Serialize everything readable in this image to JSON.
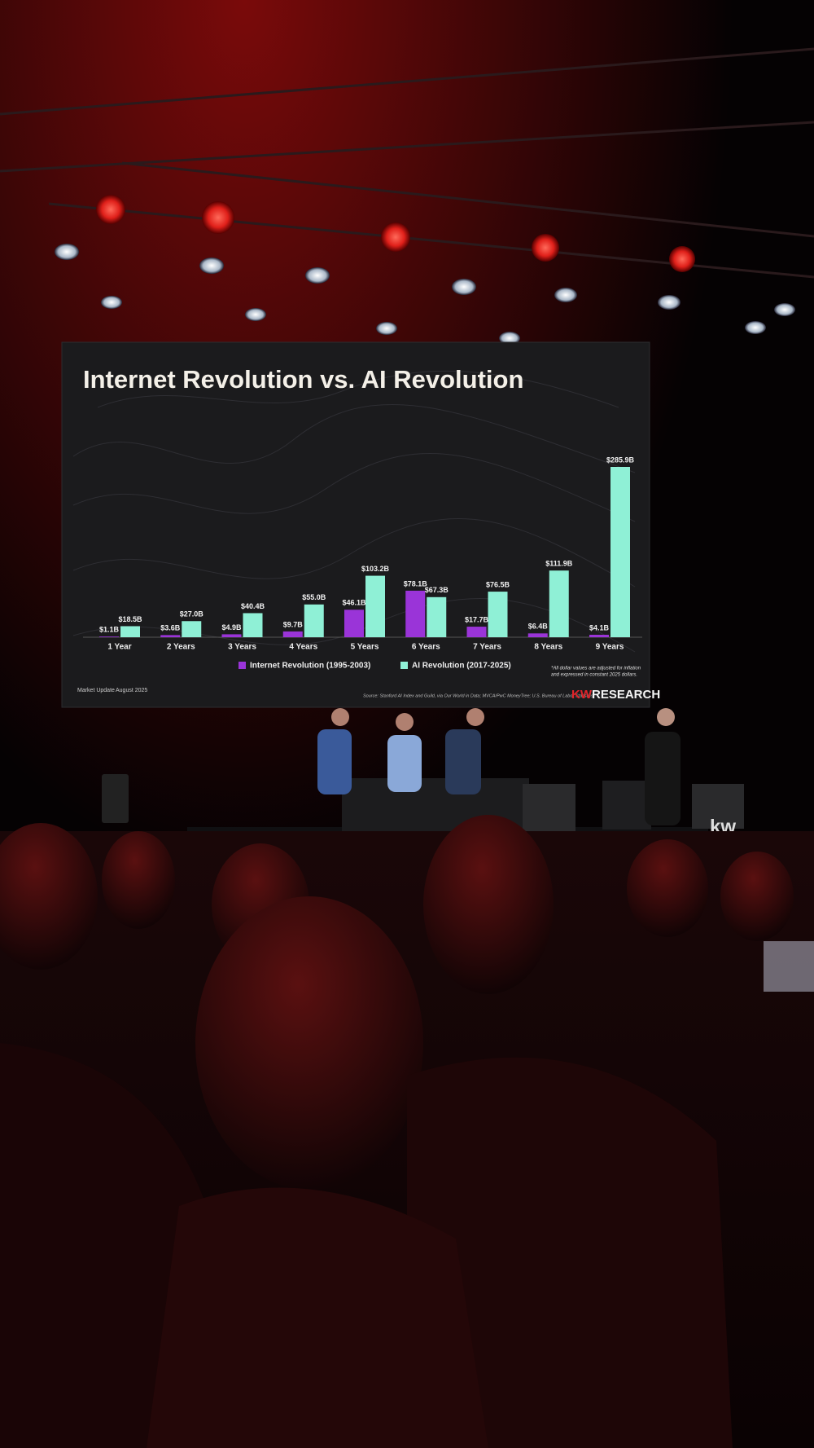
{
  "chart_data": {
    "type": "bar",
    "title": "Internet Revolution vs. AI Revolution",
    "categories": [
      "1 Year",
      "2 Years",
      "3 Years",
      "4 Years",
      "5 Years",
      "6 Years",
      "7 Years",
      "8 Years",
      "9 Years"
    ],
    "series": [
      {
        "name": "Internet Revolution (1995-2003)",
        "color": "#9a34d8",
        "values": [
          1.1,
          3.6,
          4.9,
          9.7,
          46.1,
          78.1,
          17.7,
          6.4,
          4.1
        ],
        "value_labels": [
          "$1.1B",
          "$3.6B",
          "$4.9B",
          "$9.7B",
          "$46.1B",
          "$78.1B",
          "$17.7B",
          "$6.4B",
          "$4.1B"
        ]
      },
      {
        "name": "AI Revolution (2017-2025)",
        "color": "#8ff0d6",
        "values": [
          18.5,
          27.0,
          40.4,
          55.0,
          103.2,
          67.3,
          76.5,
          111.9,
          285.9
        ],
        "value_labels": [
          "$18.5B",
          "$27.0B",
          "$40.4B",
          "$55.0B",
          "$103.2B",
          "$67.3B",
          "$76.5B",
          "$111.9B",
          "$285.9B"
        ]
      }
    ],
    "note": [
      "*All dollar values are adjusted for inflation",
      "and expressed in constant 2025 dollars."
    ],
    "source": "Source: Stanford AI Index and Guild, via Our World in Data; MVCA/PwC MoneyTree; U.S. Bureau of Labor Statistics",
    "footer": [
      "Market Update",
      "August 2025"
    ],
    "brand": {
      "accent": "KW",
      "text": "RESEARCH"
    }
  },
  "stage_sign": "kw"
}
